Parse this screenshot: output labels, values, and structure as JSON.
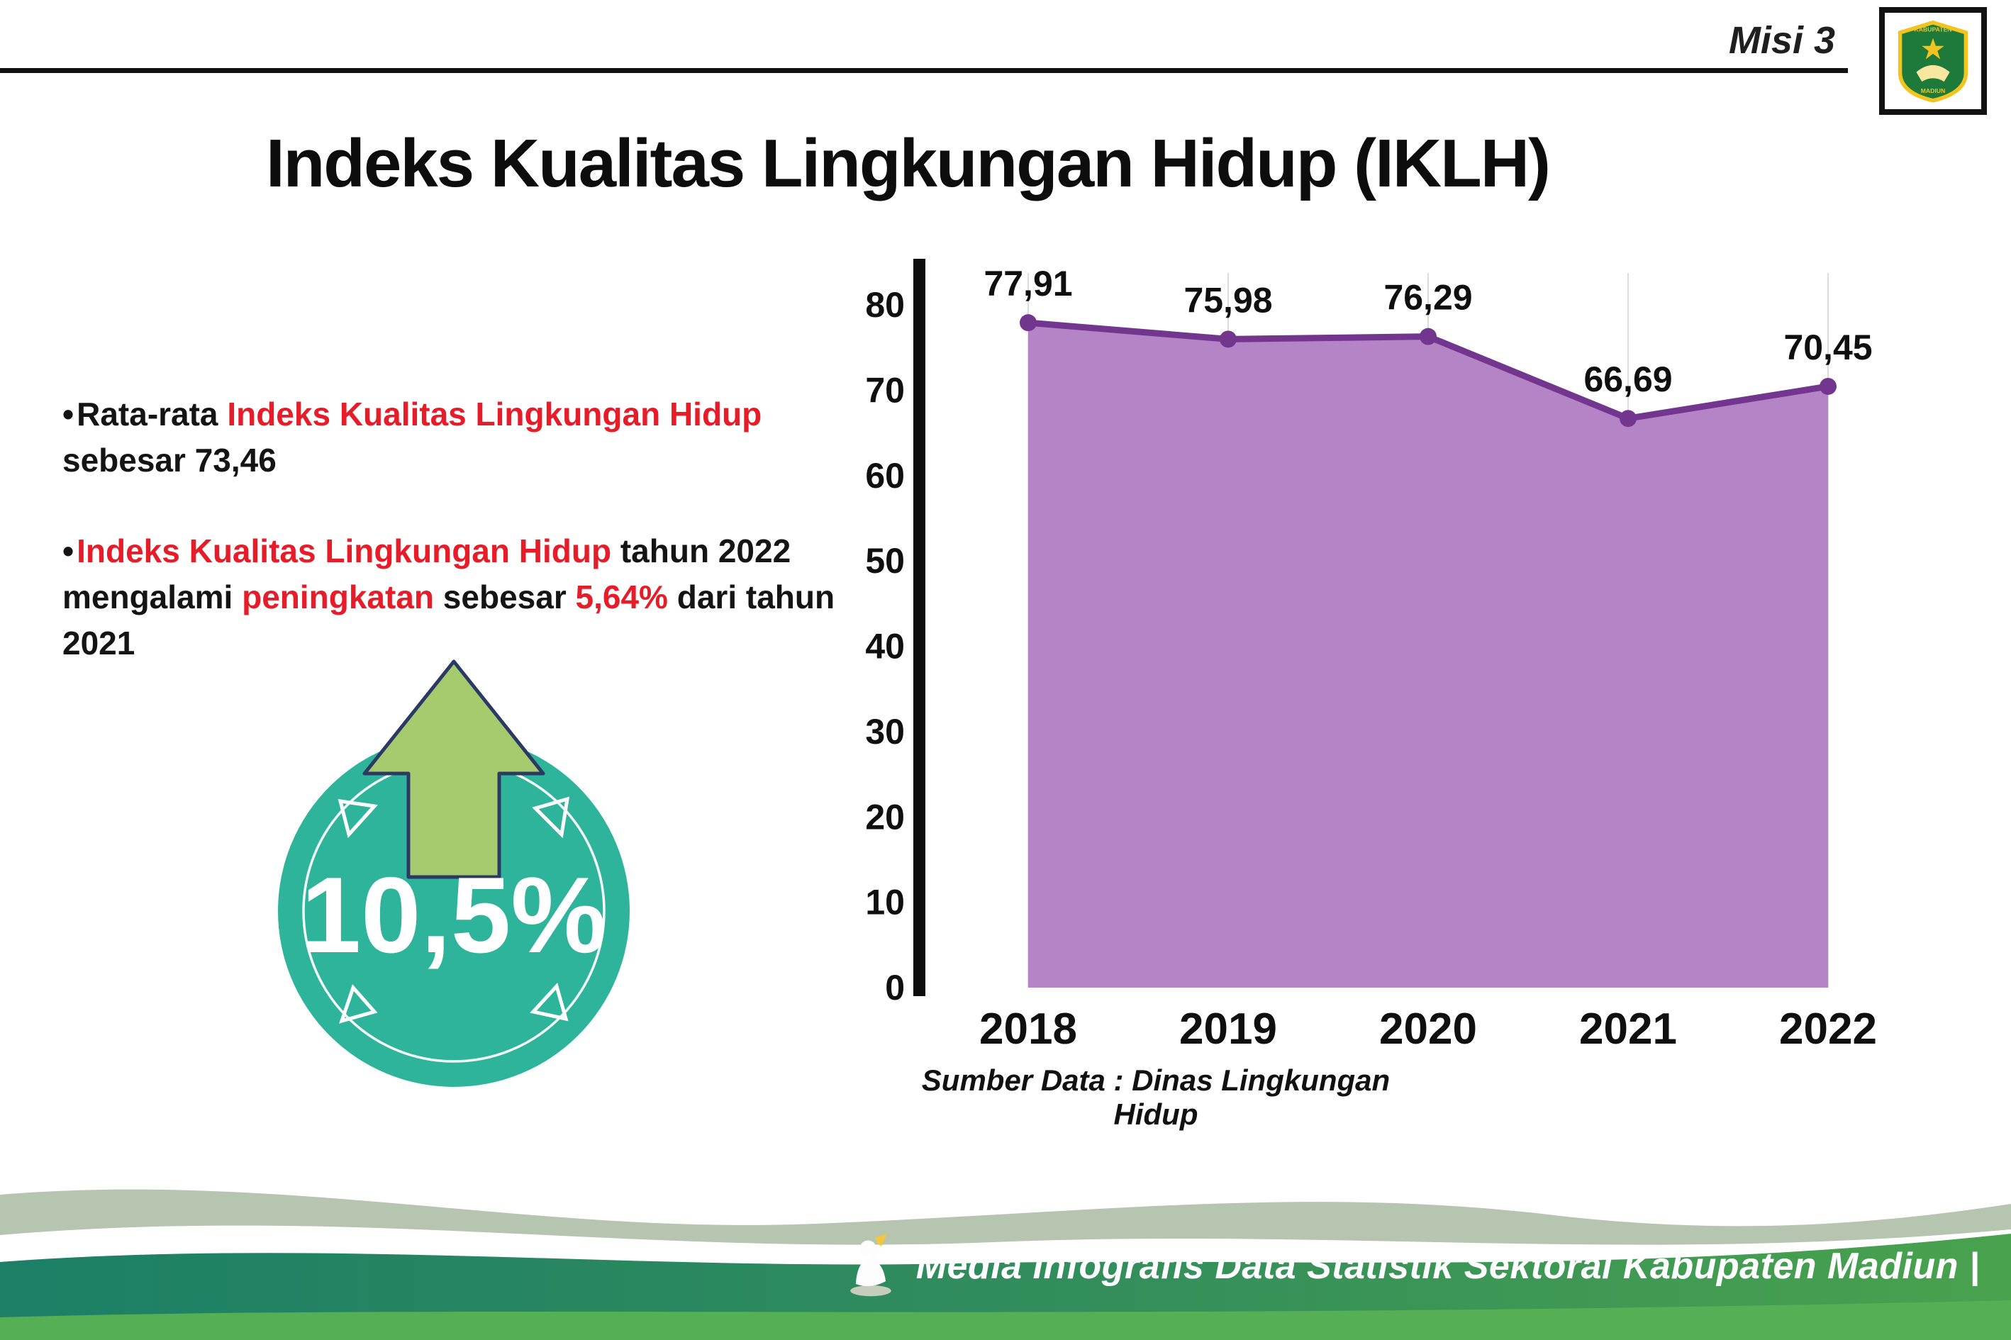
{
  "header": {
    "misi_label": "Misi 3",
    "title": "Indeks Kualitas Lingkungan Hidup (IKLH)"
  },
  "logo": {
    "top_text": "KABUPATEN",
    "bottom_text": "MADIUN"
  },
  "insights": {
    "bullet1": {
      "seg1": "Rata-rata ",
      "seg2": "Indeks Kualitas Lingkungan Hidup",
      "seg3": " sebesar 73,46"
    },
    "bullet2": {
      "seg1": "Indeks Kualitas Lingkungan Hidup",
      "seg2": " tahun 2022 mengalami ",
      "seg3": "peningkatan",
      "seg4": " sebesar ",
      "seg5": "5,64%",
      "seg6": " dari tahun 2021"
    }
  },
  "badge": {
    "value": "10,5%"
  },
  "chart_data": {
    "type": "area",
    "title": "",
    "categories": [
      "2018",
      "2019",
      "2020",
      "2021",
      "2022"
    ],
    "values": [
      77.91,
      75.98,
      76.29,
      66.69,
      70.45
    ],
    "point_labels": [
      "77,91",
      "75,98",
      "76,29",
      "66,69",
      "70,45"
    ],
    "ylim": [
      0,
      80
    ],
    "yticks": [
      0,
      10,
      20,
      30,
      40,
      50,
      60,
      70,
      80
    ],
    "grid": "vertical-light",
    "legend": "none",
    "area_color": "#b584c6",
    "line_color": "#73368f",
    "source": "Sumber Data : Dinas Lingkungan Hidup"
  },
  "footer": {
    "credit": "Media Infografis Data Statistik Sektoral Kabupaten Madiun |"
  },
  "colors": {
    "accent_red": "#e61c29",
    "badge_teal": "#2db49a",
    "arrow_green": "#a6ca6e",
    "footer_teal": "#1c7f66",
    "footer_green": "#49a24d"
  }
}
